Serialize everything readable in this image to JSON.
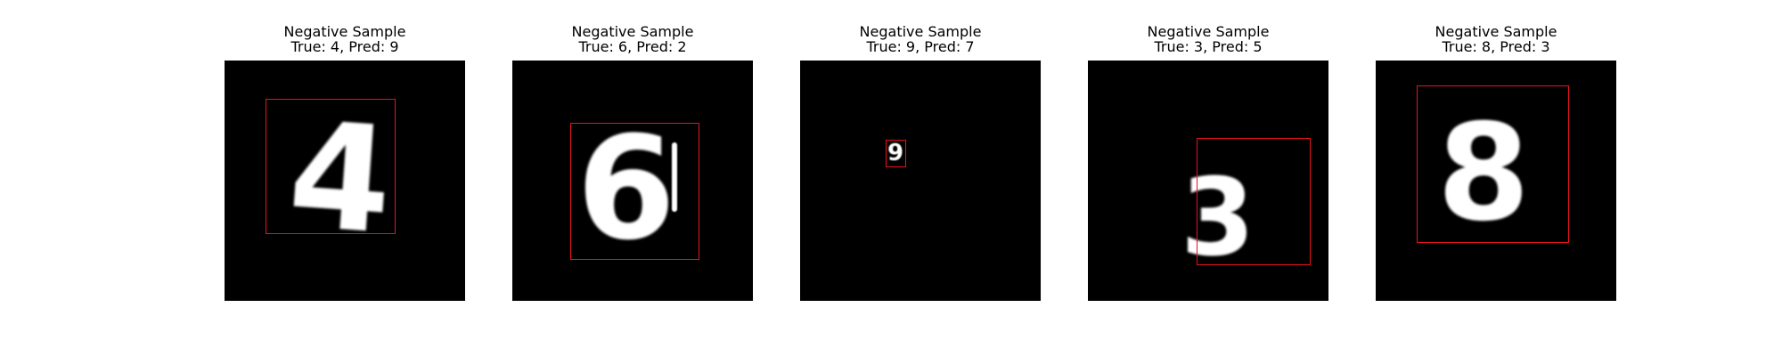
{
  "figure": {
    "samples": [
      {
        "title_line1": "Negative Sample",
        "title_line2": "True: 4, Pred: 9",
        "digit": "4"
      },
      {
        "title_line1": "Negative Sample",
        "title_line2": "True: 6, Pred: 2",
        "digit": "6"
      },
      {
        "title_line1": "Negative Sample",
        "title_line2": "True: 9, Pred: 7",
        "digit": "9"
      },
      {
        "title_line1": "Negative Sample",
        "title_line2": "True: 3, Pred: 5",
        "digit": "3"
      },
      {
        "title_line1": "Negative Sample",
        "title_line2": "True: 8, Pred: 3",
        "digit": "8"
      }
    ],
    "colors": {
      "background": "#000000",
      "box": "#e8141b",
      "digit": "#ffffff"
    }
  }
}
